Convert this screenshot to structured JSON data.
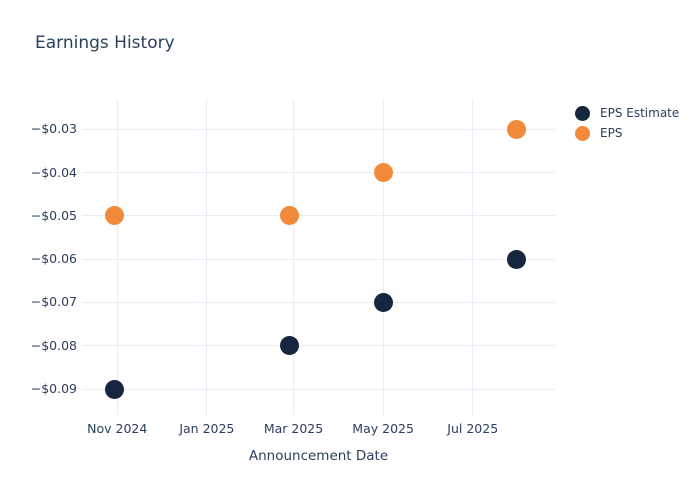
{
  "chart_data": {
    "type": "scatter",
    "title": "Earnings History",
    "xlabel": "Announcement Date",
    "ylabel": "",
    "grid": true,
    "legend_position": "right",
    "x_axis": {
      "type": "date",
      "range": [
        "2024-10-08",
        "2025-08-26"
      ],
      "ticks": [
        {
          "label": "Nov 2024",
          "date": "2024-11-01"
        },
        {
          "label": "Jan 2025",
          "date": "2025-01-01"
        },
        {
          "label": "Mar 2025",
          "date": "2025-03-01"
        },
        {
          "label": "May 2025",
          "date": "2025-05-01"
        },
        {
          "label": "Jul 2025",
          "date": "2025-07-01"
        }
      ]
    },
    "y_axis": {
      "range": [
        -0.096,
        -0.023
      ],
      "ticks": [
        {
          "label": "−$0.03",
          "value": -0.03
        },
        {
          "label": "−$0.04",
          "value": -0.04
        },
        {
          "label": "−$0.05",
          "value": -0.05
        },
        {
          "label": "−$0.06",
          "value": -0.06
        },
        {
          "label": "−$0.07",
          "value": -0.07
        },
        {
          "label": "−$0.08",
          "value": -0.08
        },
        {
          "label": "−$0.09",
          "value": -0.09
        }
      ]
    },
    "series": [
      {
        "name": "EPS Estimate",
        "color": "#16263f",
        "points": [
          {
            "date": "2024-10-30",
            "value": -0.09
          },
          {
            "date": "2025-02-26",
            "value": -0.08
          },
          {
            "date": "2025-05-01",
            "value": -0.07
          },
          {
            "date": "2025-07-31",
            "value": -0.06
          }
        ]
      },
      {
        "name": "EPS",
        "color": "#f18a3b",
        "points": [
          {
            "date": "2024-10-30",
            "value": -0.05
          },
          {
            "date": "2025-02-26",
            "value": -0.05
          },
          {
            "date": "2025-05-01",
            "value": -0.04
          },
          {
            "date": "2025-07-31",
            "value": -0.03
          }
        ]
      }
    ],
    "colors": {
      "title_text": "#2a3f5f",
      "tick_text": "#2a3f5f",
      "gridline": "#e7edf4",
      "background": "#ffffff"
    }
  }
}
